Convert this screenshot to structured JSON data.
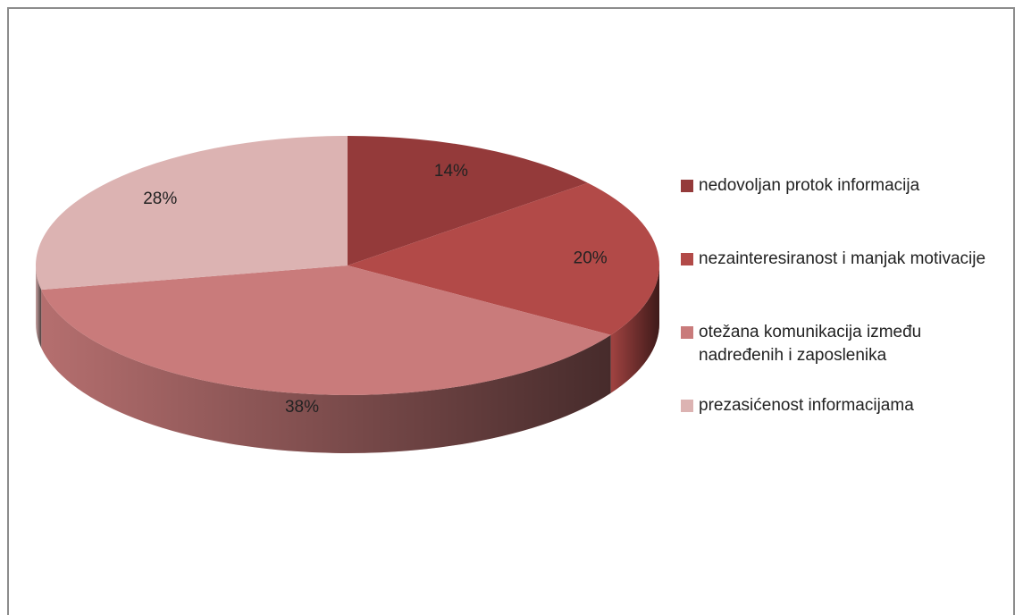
{
  "chart_data": {
    "type": "pie",
    "categories": [
      "nedovoljan protok informacija",
      "nezainteresiranost i manjak motivacije",
      "otežana komunikacija između nadređenih i zaposlenika",
      "prezasićenost informacijama"
    ],
    "values": [
      14,
      20,
      38,
      28
    ],
    "value_labels": [
      "14%",
      "20%",
      "38%",
      "28%"
    ],
    "colors": [
      "#943a3a",
      "#b24a48",
      "#c97b7b",
      "#dcb3b2"
    ],
    "legend": "right"
  }
}
